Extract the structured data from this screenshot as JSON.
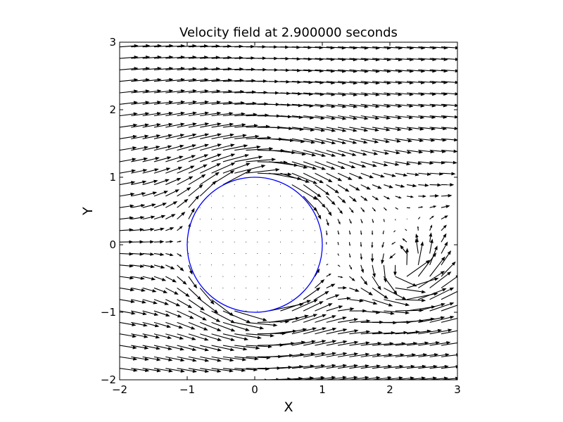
{
  "chart_data": {
    "type": "quiver",
    "title": "Velocity field at 2.900000  seconds",
    "xlabel": "X",
    "ylabel": "Y",
    "xlim": [
      -2,
      3
    ],
    "ylim": [
      -2,
      3
    ],
    "xticks": [
      -2,
      -1,
      0,
      1,
      2,
      3
    ],
    "yticks": [
      -2,
      -1,
      0,
      1,
      2,
      3
    ],
    "xtick_labels": [
      "−2",
      "−1",
      "0",
      "1",
      "2",
      "3"
    ],
    "ytick_labels": [
      "−2",
      "−1",
      "0",
      "1",
      "2",
      "3"
    ],
    "grid": false,
    "legend": "none",
    "arrow_grid": {
      "x_start": -2.0,
      "x_end": 2.9,
      "x_step": 0.17,
      "y_start": -2.0,
      "y_end": 3.0,
      "y_step": 0.17
    },
    "free_stream_velocity": 1.0,
    "cylinder": {
      "center": [
        0,
        0
      ],
      "radius": 1.0
    },
    "vortex": {
      "center": [
        2.15,
        -0.35
      ],
      "strength": 1.1
    },
    "colors": {
      "arrows": "#000000",
      "cylinder": "#0000ff",
      "axes": "#000000"
    }
  }
}
